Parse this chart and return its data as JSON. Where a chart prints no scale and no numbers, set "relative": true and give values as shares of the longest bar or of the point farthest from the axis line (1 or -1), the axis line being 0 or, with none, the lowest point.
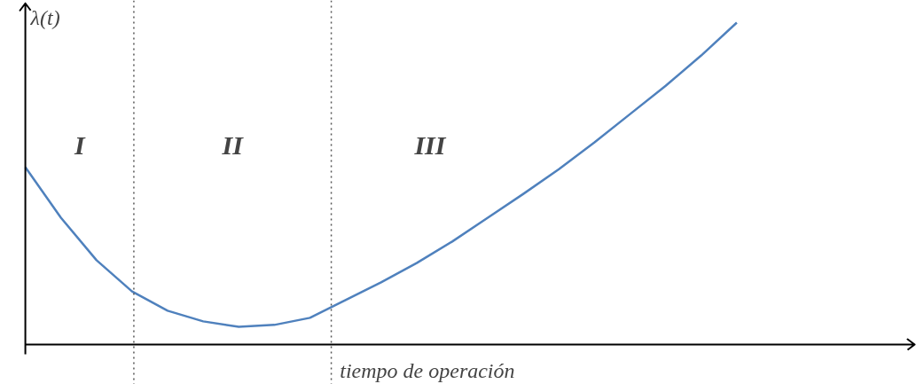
{
  "chart_data": {
    "type": "line",
    "relative": true,
    "xlabel": "tiempo de operación",
    "ylabel": "λ(t)",
    "categories": [
      null,
      null,
      null,
      null,
      null,
      null,
      null,
      null,
      null,
      null,
      null,
      null,
      null,
      null,
      null,
      null,
      null,
      null,
      null,
      null,
      null
    ],
    "series": [
      {
        "color": "#4f81bd",
        "values": [
          0.551,
          0.394,
          0.262,
          0.165,
          0.105,
          0.072,
          0.055,
          0.061,
          0.083,
          0.138,
          0.193,
          0.253,
          0.32,
          0.394,
          0.468,
          0.545,
          0.628,
          0.716,
          0.804,
          0.898,
          1.0
        ]
      }
    ],
    "annotations": [
      "I",
      "II",
      "III"
    ]
  }
}
